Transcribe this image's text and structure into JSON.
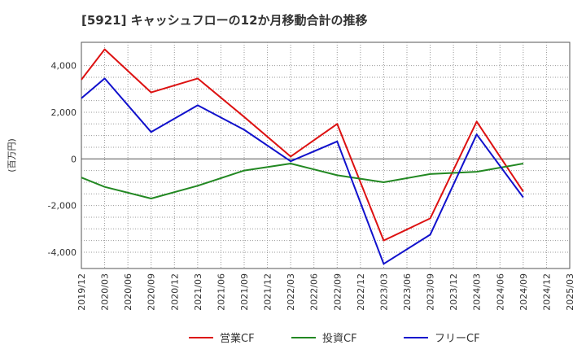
{
  "chart_data": {
    "type": "line",
    "title": "[5921]  キャッシュフローの12か月移動合計の推移",
    "ylabel": "(百万円)",
    "xlabel": "",
    "ylim": [
      -4700,
      5000
    ],
    "y_ticks": [
      4000,
      2000,
      0,
      -2000,
      -4000
    ],
    "y_tick_labels": [
      "4,000",
      "2,000",
      "0",
      "-2,000",
      "-4,000"
    ],
    "x_tick_labels": [
      "2019/12",
      "2020/03",
      "2020/06",
      "2020/09",
      "2020/12",
      "2021/03",
      "2021/06",
      "2021/09",
      "2021/12",
      "2022/03",
      "2022/06",
      "2022/09",
      "2022/12",
      "2023/03",
      "2023/06",
      "2023/09",
      "2023/12",
      "2024/03",
      "2024/06",
      "2024/09",
      "2024/12",
      "2025/03"
    ],
    "grid": true,
    "legend_position": "bottom",
    "series": [
      {
        "name": "営業CF",
        "color": "#dd1111",
        "points": [
          [
            0,
            3400
          ],
          [
            1,
            4700
          ],
          [
            3,
            2850
          ],
          [
            5,
            3450
          ],
          [
            7,
            1800
          ],
          [
            9,
            100
          ],
          [
            11,
            1500
          ],
          [
            13,
            -3500
          ],
          [
            15,
            -2550
          ],
          [
            17,
            1600
          ],
          [
            19,
            -1400
          ]
        ]
      },
      {
        "name": "投資CF",
        "color": "#228822",
        "points": [
          [
            0,
            -800
          ],
          [
            1,
            -1200
          ],
          [
            3,
            -1700
          ],
          [
            5,
            -1150
          ],
          [
            7,
            -500
          ],
          [
            9,
            -200
          ],
          [
            11,
            -700
          ],
          [
            13,
            -1000
          ],
          [
            15,
            -650
          ],
          [
            17,
            -550
          ],
          [
            19,
            -200
          ]
        ]
      },
      {
        "name": "フリーCF",
        "color": "#1111cc",
        "points": [
          [
            0,
            2600
          ],
          [
            1,
            3450
          ],
          [
            3,
            1150
          ],
          [
            5,
            2300
          ],
          [
            7,
            1250
          ],
          [
            9,
            -100
          ],
          [
            11,
            750
          ],
          [
            13,
            -4500
          ],
          [
            15,
            -3250
          ],
          [
            17,
            1050
          ],
          [
            19,
            -1650
          ]
        ]
      }
    ]
  }
}
